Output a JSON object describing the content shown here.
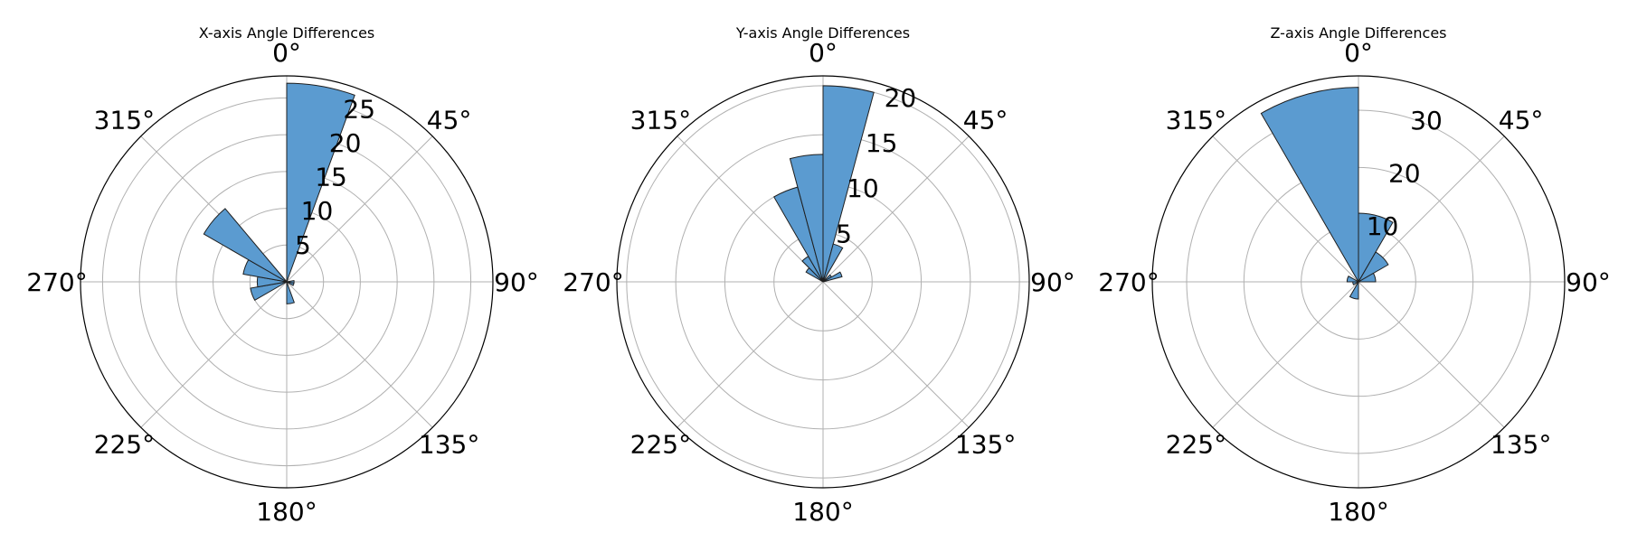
{
  "chart_data": [
    {
      "type": "bar",
      "projection": "polar",
      "title": "X-axis Angle Differences",
      "theta_zero": "top",
      "theta_direction": "clockwise",
      "angle_ticks": [
        0,
        45,
        90,
        135,
        180,
        225,
        270,
        315
      ],
      "angle_tick_labels": [
        "0°",
        "45°",
        "90°",
        "135°",
        "180°",
        "225°",
        "270°",
        "315°"
      ],
      "r_ticks": [
        5,
        10,
        15,
        20,
        25
      ],
      "r_tick_labels": [
        "5",
        "10",
        "15",
        "20",
        "25"
      ],
      "rlim": [
        0,
        28
      ],
      "bin_width_deg": 20,
      "bin_centers_deg": [
        10,
        30,
        50,
        70,
        90,
        110,
        130,
        150,
        170,
        190,
        210,
        230,
        250,
        270,
        290,
        310,
        330,
        350
      ],
      "values": [
        27,
        0,
        0,
        0,
        1,
        1,
        0,
        0,
        3,
        0,
        0,
        0,
        5,
        4,
        6,
        13,
        0,
        0
      ],
      "color": "#5b9bd0",
      "grid": true
    },
    {
      "type": "bar",
      "projection": "polar",
      "title": "Y-axis Angle Differences",
      "theta_zero": "top",
      "theta_direction": "clockwise",
      "angle_ticks": [
        0,
        45,
        90,
        135,
        180,
        225,
        270,
        315
      ],
      "angle_tick_labels": [
        "0°",
        "45°",
        "90°",
        "135°",
        "180°",
        "225°",
        "270°",
        "315°"
      ],
      "r_ticks": [
        5,
        10,
        15,
        20
      ],
      "r_tick_labels": [
        "5",
        "10",
        "15",
        "20"
      ],
      "rlim": [
        0,
        21
      ],
      "bin_width_deg": 15,
      "bin_centers_deg": [
        7.5,
        22.5,
        37.5,
        52.5,
        67.5,
        82.5,
        97.5,
        112.5,
        127.5,
        142.5,
        157.5,
        172.5,
        187.5,
        202.5,
        217.5,
        232.5,
        247.5,
        262.5,
        277.5,
        292.5,
        307.5,
        322.5,
        337.5,
        352.5
      ],
      "values": [
        20,
        4,
        0,
        1,
        2,
        0,
        0,
        0,
        0,
        0,
        0,
        0,
        0,
        0,
        0,
        0,
        0,
        0,
        0,
        0,
        2,
        3,
        10,
        13
      ],
      "color": "#5b9bd0",
      "grid": true
    },
    {
      "type": "bar",
      "projection": "polar",
      "title": "Z-axis Angle Differences",
      "theta_zero": "top",
      "theta_direction": "clockwise",
      "angle_ticks": [
        0,
        45,
        90,
        135,
        180,
        225,
        270,
        315
      ],
      "angle_tick_labels": [
        "0°",
        "45°",
        "90°",
        "135°",
        "180°",
        "225°",
        "270°",
        "315°"
      ],
      "r_ticks": [
        10,
        20,
        30
      ],
      "r_tick_labels": [
        "10",
        "20",
        "30"
      ],
      "rlim": [
        0,
        36
      ],
      "bin_width_deg": 30,
      "bin_centers_deg": [
        15,
        45,
        75,
        105,
        135,
        165,
        195,
        225,
        255,
        285,
        315,
        345
      ],
      "values": [
        12,
        6,
        3,
        0,
        0,
        0,
        3,
        0,
        1,
        2,
        0,
        34
      ],
      "color": "#5b9bd0",
      "grid": true
    }
  ]
}
